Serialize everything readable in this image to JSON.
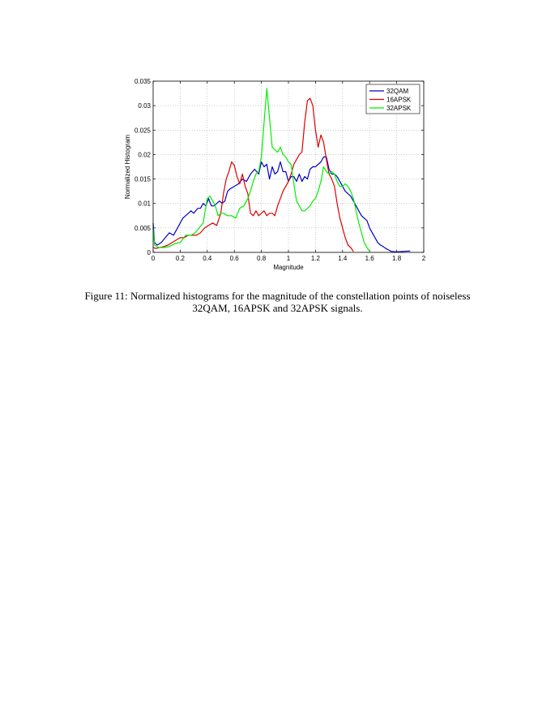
{
  "chart_data": {
    "type": "line",
    "xlabel": "Magnitude",
    "ylabel": "Normalized Histogram",
    "xlim": [
      0,
      2
    ],
    "ylim": [
      0,
      0.035
    ],
    "xticks": [
      "0",
      "0.2",
      "0.4",
      "0.6",
      "0.8",
      "1",
      "1.2",
      "1.4",
      "1.6",
      "1.8",
      "2"
    ],
    "yticks": [
      "0",
      "0.005",
      "0.01",
      "0.015",
      "0.02",
      "0.025",
      "0.03",
      "0.035"
    ],
    "grid": true,
    "legend_position": "top-right",
    "series": [
      {
        "name": "32QAM",
        "color": "#0000cc",
        "x": [
          0,
          0.01,
          0.03,
          0.06,
          0.09,
          0.12,
          0.15,
          0.18,
          0.2,
          0.22,
          0.24,
          0.26,
          0.28,
          0.3,
          0.33,
          0.35,
          0.37,
          0.39,
          0.41,
          0.43,
          0.45,
          0.47,
          0.49,
          0.51,
          0.53,
          0.55,
          0.57,
          0.6,
          0.63,
          0.66,
          0.69,
          0.72,
          0.75,
          0.78,
          0.8,
          0.82,
          0.84,
          0.86,
          0.88,
          0.9,
          0.92,
          0.94,
          0.96,
          0.98,
          1.0,
          1.02,
          1.04,
          1.06,
          1.08,
          1.1,
          1.12,
          1.14,
          1.16,
          1.18,
          1.2,
          1.22,
          1.24,
          1.26,
          1.28,
          1.3,
          1.32,
          1.34,
          1.36,
          1.38,
          1.4,
          1.42,
          1.44,
          1.46,
          1.48,
          1.5,
          1.52,
          1.54,
          1.56,
          1.58,
          1.6,
          1.62,
          1.64,
          1.66,
          1.68,
          1.7,
          1.72,
          1.74,
          1.76,
          1.8,
          1.85,
          1.9
        ],
        "y": [
          0.006,
          0.002,
          0.0015,
          0.002,
          0.003,
          0.004,
          0.0035,
          0.005,
          0.006,
          0.007,
          0.0075,
          0.008,
          0.0085,
          0.008,
          0.009,
          0.009,
          0.01,
          0.0095,
          0.011,
          0.0095,
          0.0095,
          0.01,
          0.0105,
          0.01,
          0.0105,
          0.0125,
          0.013,
          0.0135,
          0.014,
          0.015,
          0.0145,
          0.016,
          0.017,
          0.016,
          0.0185,
          0.0175,
          0.018,
          0.015,
          0.0175,
          0.016,
          0.0165,
          0.0185,
          0.0165,
          0.0165,
          0.0145,
          0.0155,
          0.0155,
          0.0145,
          0.016,
          0.0145,
          0.0155,
          0.015,
          0.017,
          0.0175,
          0.0175,
          0.018,
          0.0185,
          0.0195,
          0.0195,
          0.017,
          0.016,
          0.016,
          0.0155,
          0.0145,
          0.0135,
          0.0125,
          0.012,
          0.0115,
          0.0105,
          0.0095,
          0.0085,
          0.0075,
          0.007,
          0.0065,
          0.005,
          0.004,
          0.003,
          0.002,
          0.0015,
          0.0012,
          0.0008,
          0.0005,
          0.0002,
          0.0001,
          0.0002,
          0.0003
        ]
      },
      {
        "name": "16APSK",
        "color": "#dd0000",
        "x": [
          0,
          0.02,
          0.05,
          0.08,
          0.11,
          0.14,
          0.17,
          0.2,
          0.23,
          0.26,
          0.29,
          0.32,
          0.35,
          0.38,
          0.41,
          0.44,
          0.47,
          0.5,
          0.52,
          0.54,
          0.56,
          0.58,
          0.6,
          0.62,
          0.64,
          0.66,
          0.68,
          0.7,
          0.72,
          0.74,
          0.76,
          0.78,
          0.8,
          0.82,
          0.84,
          0.86,
          0.88,
          0.9,
          0.92,
          0.94,
          0.96,
          0.98,
          1.0,
          1.02,
          1.04,
          1.06,
          1.08,
          1.1,
          1.12,
          1.14,
          1.16,
          1.18,
          1.2,
          1.22,
          1.24,
          1.26,
          1.28,
          1.3,
          1.32,
          1.34,
          1.36,
          1.38,
          1.4,
          1.42,
          1.44,
          1.46,
          1.48
        ],
        "y": [
          0.001,
          0.0008,
          0.001,
          0.0012,
          0.0015,
          0.002,
          0.0025,
          0.003,
          0.003,
          0.0035,
          0.0035,
          0.0035,
          0.004,
          0.005,
          0.0055,
          0.006,
          0.0055,
          0.008,
          0.012,
          0.015,
          0.0165,
          0.0185,
          0.0178,
          0.0155,
          0.014,
          0.016,
          0.0135,
          0.012,
          0.008,
          0.0075,
          0.0085,
          0.0075,
          0.008,
          0.0085,
          0.0075,
          0.008,
          0.008,
          0.0075,
          0.0095,
          0.011,
          0.0125,
          0.0135,
          0.0145,
          0.016,
          0.018,
          0.019,
          0.02,
          0.0205,
          0.0265,
          0.031,
          0.0315,
          0.03,
          0.025,
          0.0215,
          0.024,
          0.0225,
          0.019,
          0.016,
          0.015,
          0.0135,
          0.01,
          0.007,
          0.005,
          0.003,
          0.0015,
          0.001,
          0.0002
        ]
      },
      {
        "name": "32APSK",
        "color": "#00ee00",
        "x": [
          0,
          0.01,
          0.04,
          0.08,
          0.12,
          0.16,
          0.2,
          0.24,
          0.28,
          0.31,
          0.34,
          0.37,
          0.4,
          0.42,
          0.44,
          0.46,
          0.48,
          0.5,
          0.52,
          0.55,
          0.58,
          0.61,
          0.64,
          0.67,
          0.7,
          0.72,
          0.74,
          0.76,
          0.78,
          0.8,
          0.82,
          0.84,
          0.86,
          0.88,
          0.9,
          0.92,
          0.94,
          0.96,
          0.98,
          1.0,
          1.02,
          1.04,
          1.06,
          1.08,
          1.1,
          1.12,
          1.14,
          1.16,
          1.18,
          1.2,
          1.22,
          1.24,
          1.26,
          1.28,
          1.3,
          1.32,
          1.34,
          1.36,
          1.38,
          1.4,
          1.42,
          1.44,
          1.46,
          1.48,
          1.5,
          1.52,
          1.54,
          1.56,
          1.58,
          1.6
        ],
        "y": [
          0.005,
          0.0015,
          0.001,
          0.001,
          0.0012,
          0.0018,
          0.002,
          0.0035,
          0.0035,
          0.004,
          0.005,
          0.006,
          0.011,
          0.0115,
          0.0105,
          0.0095,
          0.0075,
          0.008,
          0.008,
          0.0075,
          0.0075,
          0.007,
          0.009,
          0.0095,
          0.011,
          0.0125,
          0.0145,
          0.016,
          0.0165,
          0.0195,
          0.0265,
          0.0335,
          0.0275,
          0.0215,
          0.021,
          0.0205,
          0.0215,
          0.02,
          0.0195,
          0.0185,
          0.018,
          0.014,
          0.0105,
          0.0095,
          0.0085,
          0.0085,
          0.009,
          0.0095,
          0.0105,
          0.011,
          0.0125,
          0.0145,
          0.0175,
          0.0165,
          0.016,
          0.0165,
          0.016,
          0.0145,
          0.0135,
          0.0135,
          0.014,
          0.0135,
          0.0125,
          0.011,
          0.0085,
          0.006,
          0.004,
          0.002,
          0.001,
          0.0002
        ]
      }
    ]
  },
  "caption": {
    "line1": "Figure 11: Normalized histograms for the magnitude of the constellation points of noiseless",
    "line2": "32QAM, 16APSK and 32APSK signals."
  }
}
